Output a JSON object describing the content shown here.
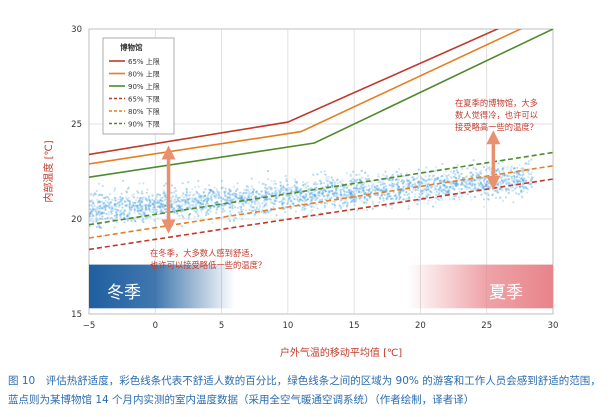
{
  "chart_data": {
    "type": "line",
    "xlabel": "户外气温的移动平均值 [℃]",
    "ylabel": "内部温度 [℃]",
    "xlim": [
      -5,
      30
    ],
    "ylim": [
      15,
      30
    ],
    "xticks": [
      -5,
      0,
      5,
      10,
      15,
      20,
      25,
      30
    ],
    "yticks": [
      15,
      20,
      25,
      30
    ],
    "grid": true,
    "legend": {
      "title": "博物馆",
      "placement": "top-left",
      "entries": [
        "65% 上限",
        "80% 上限",
        "90% 上限",
        "65% 下限",
        "80% 下限",
        "90% 下限"
      ]
    },
    "series": [
      {
        "name": "65% 上限",
        "style": "solid",
        "color": "#c0392b",
        "x": [
          -5,
          10,
          30
        ],
        "y": [
          23.4,
          25.1,
          31.3
        ]
      },
      {
        "name": "80% 上限",
        "style": "solid",
        "color": "#e67e22",
        "x": [
          -5,
          11,
          30
        ],
        "y": [
          22.9,
          24.6,
          30.8
        ]
      },
      {
        "name": "90% 上限",
        "style": "solid",
        "color": "#4f8a2e",
        "x": [
          -5,
          12,
          30
        ],
        "y": [
          22.2,
          24.0,
          30.0
        ]
      },
      {
        "name": "65% 下限",
        "style": "dashed",
        "color": "#c0392b",
        "x": [
          -5,
          30
        ],
        "y": [
          18.4,
          22.1
        ]
      },
      {
        "name": "80% 下限",
        "style": "dashed",
        "color": "#e67e22",
        "x": [
          -5,
          30
        ],
        "y": [
          19.0,
          22.8
        ]
      },
      {
        "name": "90% 下限",
        "style": "dashed",
        "color": "#4f8a2e",
        "x": [
          -5,
          30
        ],
        "y": [
          19.7,
          23.5
        ]
      }
    ],
    "scatter_description": "蓝点",
    "scatter_color": "#4aa3df",
    "annotations": {
      "winter_note": [
        "在冬季，大多数人感到舒适，",
        "也许可以接受略低一些的温度？"
      ],
      "summer_note": [
        "在夏季的博物馆，大多",
        "数人觉得冷，也许可以",
        "接受略高一些的温度？"
      ],
      "winter_label": "冬季",
      "summer_label": "夏季"
    },
    "colors": {
      "winter_band": "#1f5fa0",
      "summer_band": "#e8848a",
      "arrow": "#e89070",
      "annotation_text": "#c0392b",
      "axis_label": "#c0392b"
    }
  },
  "caption": [
    "图 10　评估热舒适度，彩色线条代表不舒适人数的百分比，绿色线条之间的区域为 90% 的游客和工作人员会感到舒适的范围，",
    "蓝点则为某博物馆 14 个月内实测的室内温度数据（采用全空气暖通空调系统）（作者绘制，译者译）"
  ]
}
